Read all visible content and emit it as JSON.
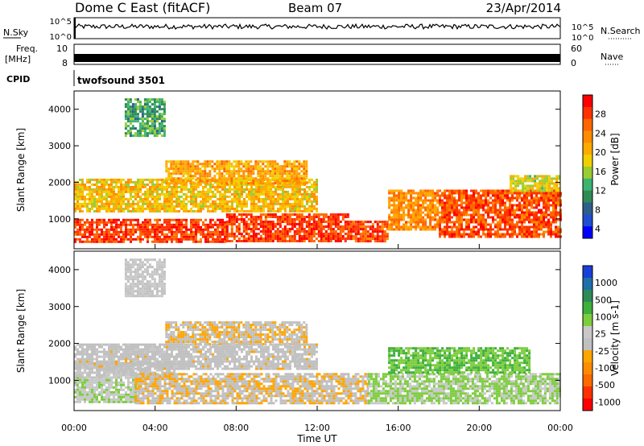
{
  "header": {
    "title": "Dome C East (fitACF)",
    "beam": "Beam 07",
    "date": "23/Apr/2014"
  },
  "top_panels": {
    "nsky_label": "N.Sky",
    "nsky_ticks": [
      "10^5",
      "10^0"
    ],
    "nsearch_label": "N.Search",
    "nsearch_ticks": [
      "10^5",
      "10^0"
    ],
    "freq_label_1": "Freq.",
    "freq_label_2": "[MHz]",
    "freq_ticks": [
      "10",
      "8"
    ],
    "nave_label": "Nave",
    "nave_ticks": [
      "60",
      "0"
    ],
    "cpid_label": "CPID",
    "cpid_value": "twofsound 3501"
  },
  "axes": {
    "ylabel": "Slant Range [km]",
    "ytick_labels": [
      "4000",
      "3000",
      "2000",
      "1000"
    ],
    "ytick_values": [
      4000,
      3000,
      2000,
      1000
    ],
    "yrange": [
      180,
      4500
    ],
    "xlabel": "Time UT",
    "xtick_labels": [
      "00:00",
      "04:00",
      "08:00",
      "12:00",
      "16:00",
      "20:00",
      "00:00"
    ],
    "xtick_hours": [
      0,
      4,
      8,
      12,
      16,
      20,
      24
    ],
    "xrange_hours": [
      0,
      24
    ]
  },
  "colorbars": {
    "power": {
      "label": "Power [dB]",
      "tick_labels": [
        "28",
        "24",
        "20",
        "16",
        "12",
        "8",
        "4"
      ],
      "colors": [
        "#ff0000",
        "#ff3300",
        "#ff6600",
        "#ff8c00",
        "#ffaa00",
        "#f0d000",
        "#9acd32",
        "#3cb371",
        "#2e8b57",
        "#2e5e8b",
        "#1f4fd0",
        "#0000ff"
      ]
    },
    "velocity": {
      "label": "Velocity [m s-1]",
      "tick_labels": [
        "1000",
        "500",
        "100",
        "25",
        "-25",
        "-100",
        "-500",
        "-1000"
      ],
      "colors": [
        "#1a3fd8",
        "#1f6fa8",
        "#2e8b57",
        "#3daf3d",
        "#7ccd3d",
        "#c8c8c8",
        "#c0c0c0",
        "#ffa500",
        "#ff8c00",
        "#ff6a00",
        "#ff3000",
        "#ff0000"
      ]
    }
  },
  "chart_data": [
    {
      "type": "heatmap",
      "name_panel": "Power",
      "title": "Dome C East (fitACF)",
      "xlabel": "Time UT",
      "ylabel": "Slant Range [km]",
      "x_range_hours": [
        0,
        24
      ],
      "y_range_km": [
        180,
        4500
      ],
      "colorbar": "Power [dB]",
      "color_range_db": [
        0,
        30
      ],
      "regions": [
        {
          "t": [
            0.0,
            7.5
          ],
          "range": [
            400,
            1000
          ],
          "db": 27
        },
        {
          "t": [
            7.5,
            13.5
          ],
          "range": [
            400,
            1150
          ],
          "db": 27
        },
        {
          "t": [
            13.5,
            15.5
          ],
          "range": [
            400,
            950
          ],
          "db": 26
        },
        {
          "t": [
            15.5,
            18.0
          ],
          "range": [
            700,
            1800
          ],
          "db": 22
        },
        {
          "t": [
            18.0,
            24.0
          ],
          "range": [
            500,
            1800
          ],
          "db": 26
        },
        {
          "t": [
            0.0,
            12.0
          ],
          "range": [
            1200,
            2100
          ],
          "db": 18
        },
        {
          "t": [
            4.5,
            11.5
          ],
          "range": [
            2000,
            2600
          ],
          "db": 20
        },
        {
          "t": [
            2.5,
            4.5
          ],
          "range": [
            3300,
            4300
          ],
          "db": 10
        },
        {
          "t": [
            21.5,
            24.0
          ],
          "range": [
            1800,
            2200
          ],
          "db": 16
        }
      ]
    },
    {
      "type": "heatmap",
      "name_panel": "Velocity",
      "xlabel": "Time UT",
      "ylabel": "Slant Range [km]",
      "x_range_hours": [
        0,
        24
      ],
      "y_range_km": [
        180,
        4500
      ],
      "colorbar": "Velocity [m s-1]",
      "color_range_ms": [
        -1000,
        1000
      ],
      "regions": [
        {
          "t": [
            0.0,
            3.0
          ],
          "range": [
            400,
            1100
          ],
          "vel": 150
        },
        {
          "t": [
            0.0,
            5.0
          ],
          "range": [
            1100,
            1500
          ],
          "vel": 0
        },
        {
          "t": [
            3.0,
            14.5
          ],
          "range": [
            400,
            1200
          ],
          "vel": -150
        },
        {
          "t": [
            14.5,
            24.0
          ],
          "range": [
            400,
            1200
          ],
          "vel": 200
        },
        {
          "t": [
            15.5,
            22.5
          ],
          "range": [
            1200,
            1900
          ],
          "vel": 350
        },
        {
          "t": [
            4.5,
            11.5
          ],
          "range": [
            2000,
            2600
          ],
          "vel": -150
        },
        {
          "t": [
            0.0,
            12.0
          ],
          "range": [
            1300,
            2000
          ],
          "vel": -80
        },
        {
          "t": [
            2.5,
            4.5
          ],
          "range": [
            3300,
            4300
          ],
          "vel": 5
        }
      ]
    }
  ]
}
